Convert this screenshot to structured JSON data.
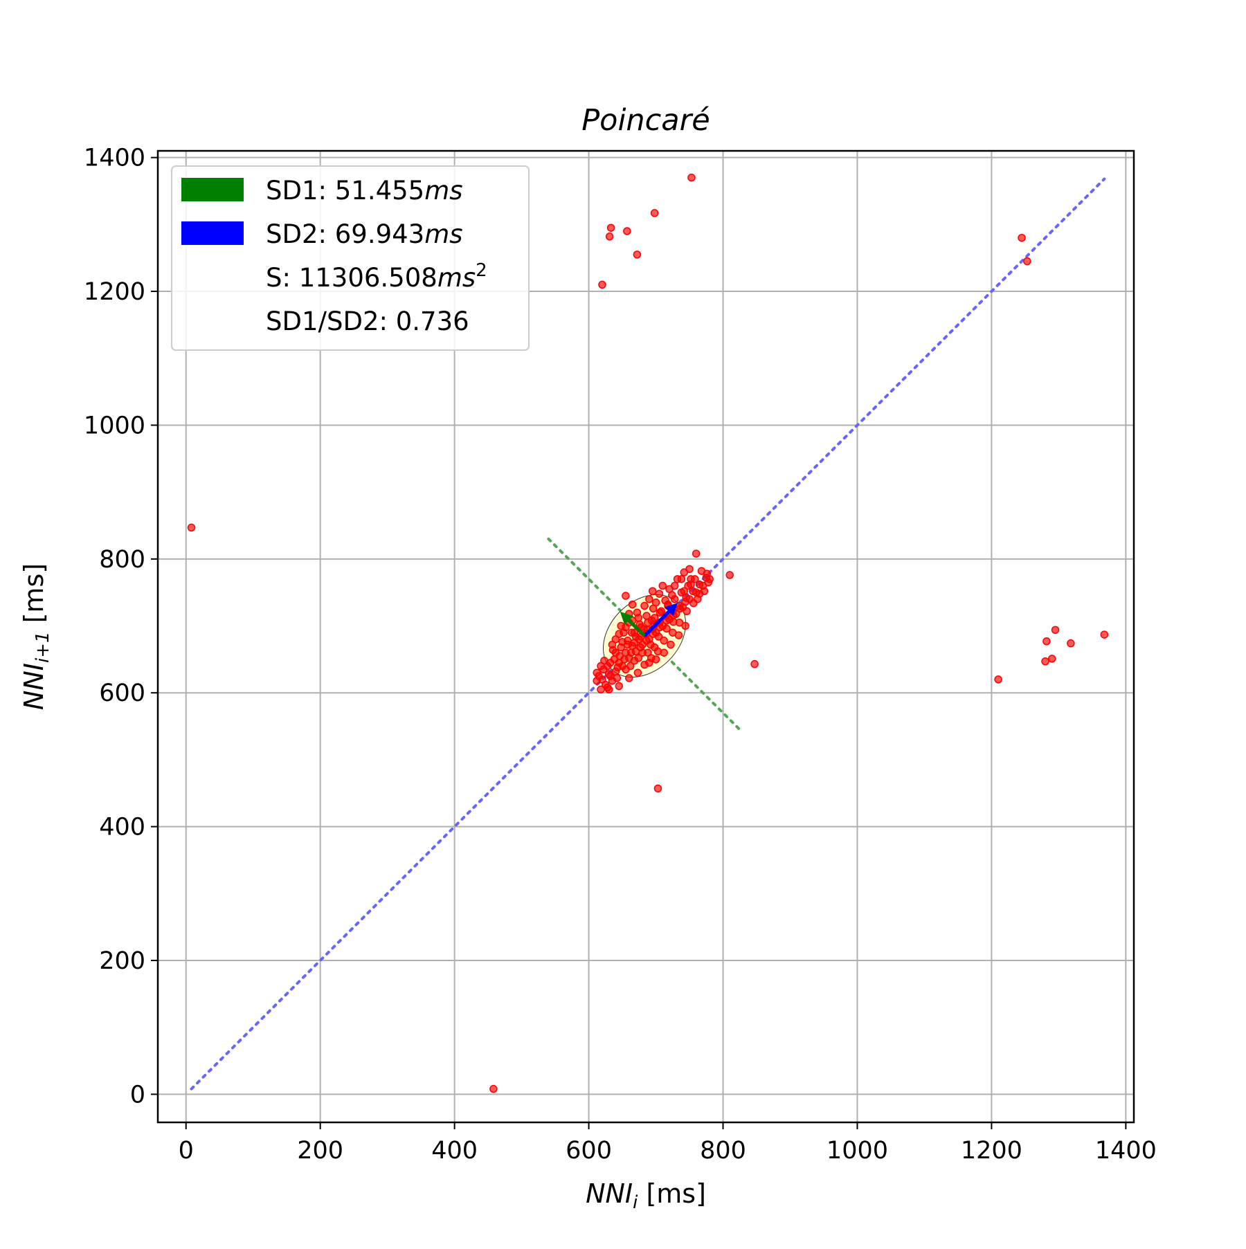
{
  "chart_data": {
    "type": "scatter",
    "title": "Poincaré",
    "xlabel": {
      "main": "NNI",
      "sub": "i",
      "unit": " [ms]"
    },
    "ylabel": {
      "main": "NNI",
      "sub": "i+1",
      "unit": " [ms]"
    },
    "xlim": [
      -42,
      1412
    ],
    "ylim": [
      -42,
      1410
    ],
    "xticks": [
      0,
      200,
      400,
      600,
      800,
      1000,
      1200,
      1400
    ],
    "yticks": [
      0,
      200,
      400,
      600,
      800,
      1000,
      1200,
      1400
    ],
    "xtick_labels": [
      "0",
      "200",
      "400",
      "600",
      "800",
      "1000",
      "1200",
      "1400"
    ],
    "ytick_labels": [
      "0",
      "200",
      "400",
      "600",
      "800",
      "1000",
      "1200",
      "1400"
    ],
    "grid": true,
    "legend_position": "top-left",
    "colors": {
      "points": "#ff0000",
      "sd1": "#008000",
      "sd2": "#0000ff",
      "identity_line": "#6666ff",
      "perpendicular_line": "#55a555",
      "ellipse_fill": "#ffffcc",
      "grid": "#b0b0b0"
    },
    "legend": [
      {
        "key": "sd1",
        "color": "#008000",
        "label": "SD1: 51.455",
        "unit": "ms",
        "sup": ""
      },
      {
        "key": "sd2",
        "color": "#0000ff",
        "label": "SD2: 69.943",
        "unit": "ms",
        "sup": ""
      },
      {
        "key": "s",
        "color": "",
        "label": "S: 11306.508",
        "unit": "ms",
        "sup": "2"
      },
      {
        "key": "ratio",
        "color": "",
        "label": "SD1/SD2: 0.736",
        "unit": "",
        "sup": ""
      }
    ],
    "center": [
      683,
      685
    ],
    "sd1": 51.455,
    "sd2": 69.943,
    "identity_line": [
      [
        8,
        8
      ],
      [
        1368,
        1368
      ]
    ],
    "perpendicular_line": [
      [
        540,
        830
      ],
      [
        826,
        544
      ]
    ],
    "outliers": [
      [
        753,
        1370
      ],
      [
        698,
        1317
      ],
      [
        633,
        1295
      ],
      [
        631,
        1282
      ],
      [
        657,
        1290
      ],
      [
        672,
        1255
      ],
      [
        620,
        1210
      ],
      [
        1245,
        1280
      ],
      [
        1253,
        1245
      ],
      [
        8,
        847
      ],
      [
        458,
        8
      ],
      [
        703,
        457
      ],
      [
        847,
        643
      ],
      [
        1210,
        620
      ],
      [
        1282,
        677
      ],
      [
        1295,
        694
      ],
      [
        1318,
        674
      ],
      [
        1280,
        647
      ],
      [
        1290,
        651
      ],
      [
        1368,
        687
      ],
      [
        760,
        808
      ],
      [
        810,
        776
      ]
    ],
    "cluster": [
      [
        620,
        620
      ],
      [
        625,
        612
      ],
      [
        630,
        628
      ],
      [
        628,
        640
      ],
      [
        635,
        618
      ],
      [
        640,
        632
      ],
      [
        645,
        645
      ],
      [
        638,
        650
      ],
      [
        650,
        640
      ],
      [
        655,
        660
      ],
      [
        648,
        668
      ],
      [
        660,
        652
      ],
      [
        665,
        670
      ],
      [
        658,
        678
      ],
      [
        670,
        662
      ],
      [
        675,
        680
      ],
      [
        668,
        690
      ],
      [
        680,
        672
      ],
      [
        685,
        688
      ],
      [
        678,
        698
      ],
      [
        690,
        680
      ],
      [
        695,
        695
      ],
      [
        688,
        705
      ],
      [
        700,
        690
      ],
      [
        705,
        705
      ],
      [
        698,
        712
      ],
      [
        710,
        700
      ],
      [
        715,
        715
      ],
      [
        708,
        722
      ],
      [
        720,
        710
      ],
      [
        725,
        722
      ],
      [
        718,
        730
      ],
      [
        730,
        718
      ],
      [
        735,
        730
      ],
      [
        728,
        740
      ],
      [
        740,
        728
      ],
      [
        745,
        742
      ],
      [
        738,
        750
      ],
      [
        750,
        740
      ],
      [
        755,
        752
      ],
      [
        748,
        760
      ],
      [
        760,
        750
      ],
      [
        765,
        762
      ],
      [
        758,
        770
      ],
      [
        770,
        760
      ],
      [
        775,
        772
      ],
      [
        768,
        782
      ],
      [
        778,
        765
      ],
      [
        742,
        780
      ],
      [
        732,
        770
      ],
      [
        752,
        770
      ],
      [
        765,
        748
      ],
      [
        660,
        718
      ],
      [
        648,
        700
      ],
      [
        652,
        690
      ],
      [
        640,
        680
      ],
      [
        690,
        740
      ],
      [
        700,
        735
      ],
      [
        672,
        720
      ],
      [
        710,
        760
      ],
      [
        720,
        755
      ],
      [
        688,
        660
      ],
      [
        698,
        668
      ],
      [
        712,
        678
      ],
      [
        640,
        660
      ],
      [
        632,
        645
      ],
      [
        622,
        635
      ],
      [
        615,
        625
      ],
      [
        612,
        618
      ],
      [
        618,
        605
      ],
      [
        628,
        608
      ],
      [
        642,
        622
      ],
      [
        655,
        635
      ],
      [
        668,
        648
      ],
      [
        680,
        660
      ],
      [
        692,
        672
      ],
      [
        704,
        684
      ],
      [
        716,
        696
      ],
      [
        726,
        706
      ],
      [
        662,
        640
      ],
      [
        674,
        652
      ],
      [
        646,
        655
      ],
      [
        658,
        672
      ],
      [
        670,
        684
      ],
      [
        682,
        695
      ],
      [
        694,
        708
      ],
      [
        706,
        720
      ],
      [
        718,
        732
      ],
      [
        636,
        664
      ],
      [
        650,
        676
      ],
      [
        664,
        690
      ],
      [
        676,
        702
      ],
      [
        686,
        715
      ],
      [
        696,
        726
      ],
      [
        660,
        705
      ],
      [
        674,
        712
      ],
      [
        746,
        722
      ],
      [
        756,
        734
      ],
      [
        762,
        740
      ],
      [
        772,
        752
      ],
      [
        780,
        770
      ],
      [
        776,
        778
      ],
      [
        724,
        746
      ],
      [
        714,
        738
      ],
      [
        705,
        748
      ],
      [
        695,
        752
      ],
      [
        728,
        760
      ],
      [
        738,
        770
      ],
      [
        750,
        785
      ],
      [
        683,
        730
      ],
      [
        665,
        732
      ],
      [
        655,
        745
      ],
      [
        700,
        650
      ],
      [
        690,
        645
      ],
      [
        712,
        660
      ],
      [
        722,
        672
      ],
      [
        734,
        686
      ],
      [
        744,
        700
      ],
      [
        725,
        690
      ],
      [
        735,
        705
      ],
      [
        630,
        605
      ],
      [
        645,
        610
      ],
      [
        660,
        622
      ],
      [
        673,
        630
      ],
      [
        683,
        642
      ],
      [
        693,
        652
      ],
      [
        703,
        662
      ],
      [
        623,
        648
      ],
      [
        612,
        630
      ],
      [
        618,
        640
      ],
      [
        635,
        672
      ],
      [
        645,
        688
      ],
      [
        655,
        698
      ],
      [
        665,
        708
      ],
      [
        742,
        752
      ],
      [
        752,
        762
      ],
      [
        632,
        625
      ],
      [
        643,
        638
      ],
      [
        653,
        650
      ],
      [
        663,
        660
      ],
      [
        677,
        668
      ],
      [
        686,
        678
      ],
      [
        696,
        688
      ],
      [
        706,
        698
      ],
      [
        716,
        708
      ],
      [
        726,
        716
      ],
      [
        736,
        726
      ],
      [
        744,
        736
      ],
      [
        668,
        675
      ],
      [
        678,
        684
      ],
      [
        688,
        694
      ],
      [
        698,
        702
      ]
    ]
  }
}
